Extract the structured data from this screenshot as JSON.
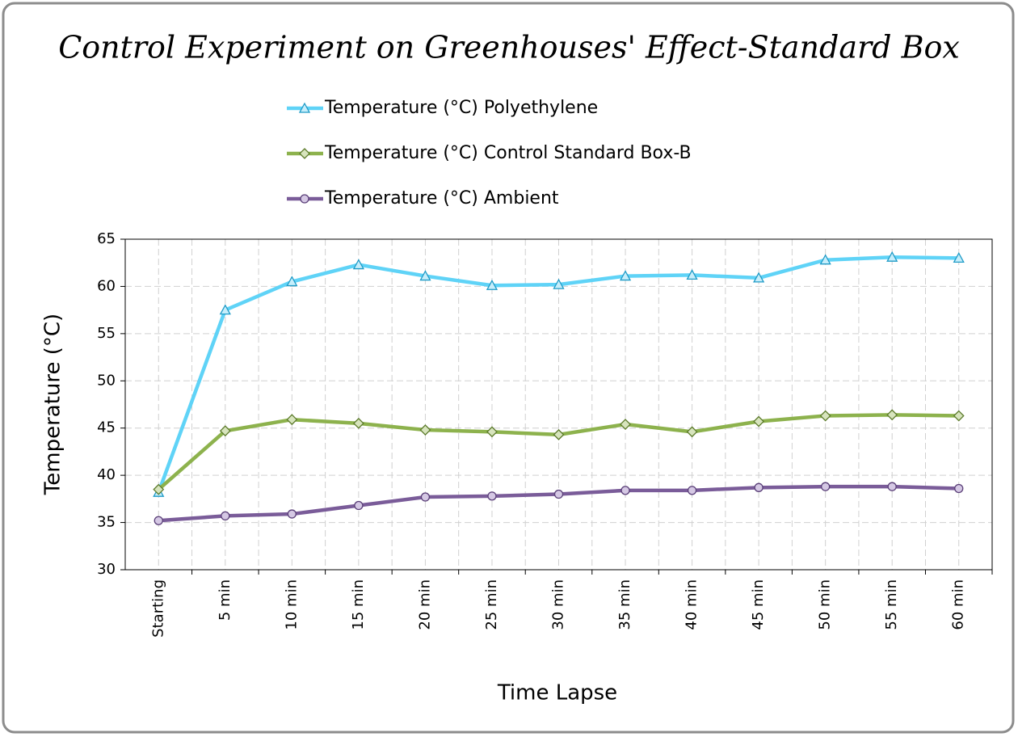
{
  "chart_data": {
    "type": "line",
    "title": "Control Experiment on Greenhouses' Effect-Standard Box",
    "x_label": "Time Lapse",
    "y_label": "Temperature (°C)",
    "categories": [
      "Starting",
      "5 min",
      "10 min",
      "15 min",
      "20 min",
      "25 min",
      "30 min",
      "35 min",
      "40 min",
      "45 min",
      "50 min",
      "55 min",
      "60 min"
    ],
    "series": [
      {
        "name": "Temperature (°C) Polyethylene",
        "color": "#5fd3f7",
        "marker": "triangle",
        "marker_fill": "#c6eefb",
        "marker_stroke": "#1f9bc7",
        "values": [
          38.2,
          57.5,
          60.5,
          62.3,
          61.1,
          60.1,
          60.2,
          61.1,
          61.2,
          60.9,
          62.8,
          63.1,
          63.0
        ]
      },
      {
        "name": "Temperature (°C) Control Standard Box-B",
        "color": "#8db24d",
        "marker": "diamond",
        "marker_fill": "#d7e4bd",
        "marker_stroke": "#5b7a2a",
        "values": [
          38.5,
          44.7,
          45.9,
          45.5,
          44.8,
          44.6,
          44.3,
          45.4,
          44.6,
          45.7,
          46.3,
          46.4,
          46.3
        ]
      },
      {
        "name": "Temperature (°C) Ambient",
        "color": "#7a5c99",
        "marker": "circle",
        "marker_fill": "#d5c8e4",
        "marker_stroke": "#5a3f78",
        "values": [
          35.2,
          35.7,
          35.9,
          36.8,
          37.7,
          37.8,
          38.0,
          38.4,
          38.4,
          38.7,
          38.8,
          38.8,
          38.6
        ]
      }
    ],
    "ylim": [
      30,
      65
    ],
    "yticks": [
      30,
      35,
      40,
      45,
      50,
      55,
      60,
      65
    ],
    "grid": true
  }
}
